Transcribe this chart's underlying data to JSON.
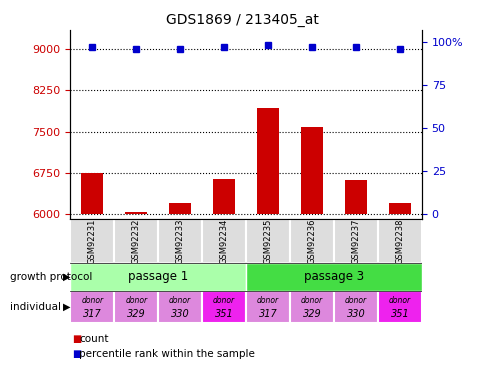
{
  "title": "GDS1869 / 213405_at",
  "samples": [
    "GSM92231",
    "GSM92232",
    "GSM92233",
    "GSM92234",
    "GSM92235",
    "GSM92236",
    "GSM92237",
    "GSM92238"
  ],
  "count_values": [
    6750,
    6040,
    6200,
    6630,
    7920,
    7580,
    6620,
    6200
  ],
  "percentile_values": [
    97,
    96,
    96,
    97,
    98,
    97,
    97,
    96
  ],
  "ylim_left": [
    5900,
    9350
  ],
  "ylim_right": [
    -3.1,
    107
  ],
  "yticks_left": [
    6000,
    6750,
    7500,
    8250,
    9000
  ],
  "yticks_right": [
    0,
    25,
    50,
    75,
    100
  ],
  "bar_color": "#cc0000",
  "dot_color": "#0000cc",
  "passage1_color": "#aaffaa",
  "passage3_color": "#44dd44",
  "passage1_label": "passage 1",
  "passage3_label": "passage 3",
  "individual_colors": [
    "#dd88dd",
    "#dd88dd",
    "#dd88dd",
    "#ee22ee",
    "#dd88dd",
    "#dd88dd",
    "#dd88dd",
    "#ee22ee"
  ],
  "individual_labels_line1": [
    "donor",
    "donor",
    "donor",
    "donor",
    "donor",
    "donor",
    "donor",
    "donor"
  ],
  "individual_labels_line2": [
    "317",
    "329",
    "330",
    "351",
    "317",
    "329",
    "330",
    "351"
  ],
  "legend_count_color": "#cc0000",
  "legend_percentile_color": "#0000cc",
  "count_base": 6000,
  "bg_color": "#ffffff"
}
